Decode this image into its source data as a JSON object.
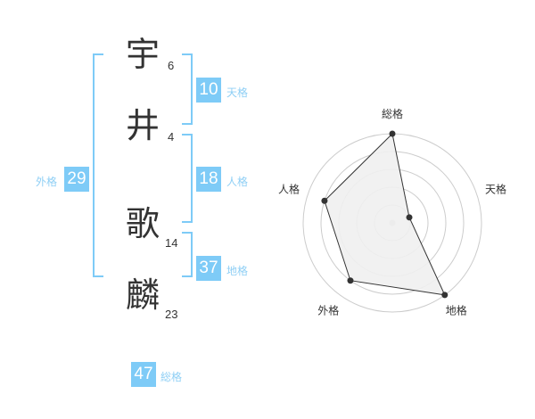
{
  "name": [
    {
      "char": "宇",
      "strokes": "6"
    },
    {
      "char": "井",
      "strokes": "4"
    },
    {
      "char": "歌",
      "strokes": "14"
    },
    {
      "char": "麟",
      "strokes": "23"
    }
  ],
  "fortunes": {
    "tenkaku": {
      "label": "天格",
      "value": "10"
    },
    "jinkaku": {
      "label": "人格",
      "value": "18"
    },
    "chikaku": {
      "label": "地格",
      "value": "37"
    },
    "gaikaku": {
      "label": "外格",
      "value": "29"
    },
    "soukaku": {
      "label": "総格",
      "value": "47"
    }
  },
  "chart_data": {
    "type": "radar",
    "axes": [
      "総格",
      "天格",
      "地格",
      "外格",
      "人格"
    ],
    "values": [
      5,
      1,
      5,
      4,
      4
    ],
    "range": [
      0,
      5
    ],
    "rings": 5,
    "colors": {
      "fill": "#f0f0f0",
      "line": "#333333",
      "ring": "#cccccc"
    }
  }
}
